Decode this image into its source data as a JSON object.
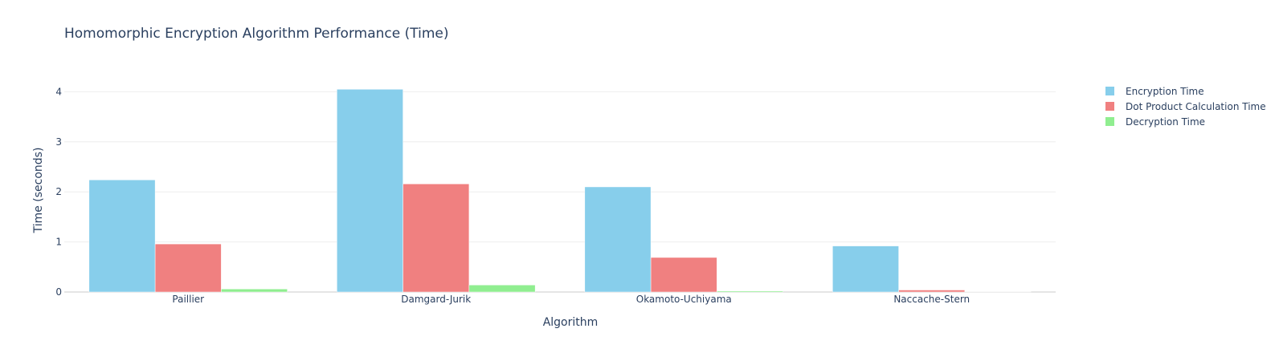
{
  "chart_data": {
    "type": "bar",
    "title": "Homomorphic Encryption Algorithm Performance (Time)",
    "xlabel": "Algorithm",
    "ylabel": "Time (seconds)",
    "categories": [
      "Paillier",
      "Damgard-Jurik",
      "Okamoto-Uchiyama",
      "Naccache-Stern"
    ],
    "series": [
      {
        "name": "Encryption Time",
        "color": "#87ceeb",
        "values": [
          2.24,
          4.05,
          2.1,
          0.92
        ]
      },
      {
        "name": "Dot Product Calculation Time",
        "color": "#f08080",
        "values": [
          0.96,
          2.16,
          0.69,
          0.04
        ]
      },
      {
        "name": "Decryption Time",
        "color": "#90ee90",
        "values": [
          0.06,
          0.14,
          0.02,
          0.005
        ]
      }
    ],
    "ylim": [
      0,
      4.2
    ],
    "yticks": [
      0,
      1,
      2,
      3,
      4
    ],
    "grid": true,
    "legend_position": "top-right"
  }
}
